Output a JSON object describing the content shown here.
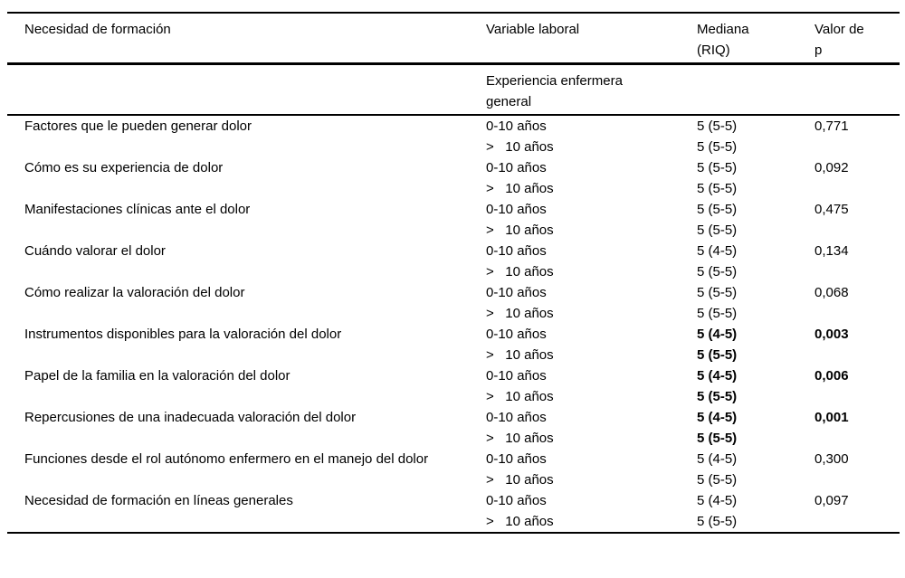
{
  "table": {
    "headers": {
      "need": "Necesidad de formación",
      "variable": "Variable laboral",
      "median": "Mediana\n(RIQ)",
      "p_value": "Valor de\np"
    },
    "subheader": {
      "variable_group": "Experiencia enfermera\ngeneral"
    },
    "groups": [
      {
        "need": "Factores que le pueden generar dolor",
        "rows": [
          {
            "variable": "0-10 años",
            "median": "5 (5-5)",
            "p": "0,771",
            "bold": false
          },
          {
            "variable": ">   10 años",
            "median": "5 (5-5)",
            "p": "",
            "bold": false
          }
        ]
      },
      {
        "need": "Cómo es su experiencia de dolor",
        "rows": [
          {
            "variable": "0-10 años",
            "median": "5 (5-5)",
            "p": "0,092",
            "bold": false
          },
          {
            "variable": ">   10 años",
            "median": "5 (5-5)",
            "p": "",
            "bold": false
          }
        ]
      },
      {
        "need": "Manifestaciones clínicas ante el dolor",
        "rows": [
          {
            "variable": "0-10 años",
            "median": "5 (5-5)",
            "p": "0,475",
            "bold": false
          },
          {
            "variable": ">   10 años",
            "median": "5 (5-5)",
            "p": "",
            "bold": false
          }
        ]
      },
      {
        "need": "Cuándo valorar el dolor",
        "rows": [
          {
            "variable": "0-10 años",
            "median": "5 (4-5)",
            "p": "0,134",
            "bold": false
          },
          {
            "variable": ">   10 años",
            "median": "5 (5-5)",
            "p": "",
            "bold": false
          }
        ]
      },
      {
        "need": "Cómo realizar la valoración del dolor",
        "rows": [
          {
            "variable": "0-10 años",
            "median": "5 (5-5)",
            "p": "0,068",
            "bold": false
          },
          {
            "variable": ">   10 años",
            "median": "5 (5-5)",
            "p": "",
            "bold": false
          }
        ]
      },
      {
        "need": "Instrumentos disponibles para la valoración del dolor",
        "rows": [
          {
            "variable": "0-10 años",
            "median": "5 (4-5)",
            "p": "0,003",
            "bold": true
          },
          {
            "variable": ">   10 años",
            "median": "5 (5-5)",
            "p": "",
            "bold": true
          }
        ]
      },
      {
        "need": "Papel de la familia en la valoración del dolor",
        "rows": [
          {
            "variable": "0-10 años",
            "median": "5 (4-5)",
            "p": "0,006",
            "bold": true
          },
          {
            "variable": ">   10 años",
            "median": "5 (5-5)",
            "p": "",
            "bold": true
          }
        ]
      },
      {
        "need": "Repercusiones de una inadecuada valoración del dolor",
        "rows": [
          {
            "variable": "0-10 años",
            "median": "5 (4-5)",
            "p": "0,001",
            "bold": true
          },
          {
            "variable": ">   10 años",
            "median": "5 (5-5)",
            "p": "",
            "bold": true
          }
        ]
      },
      {
        "need": "Funciones desde el rol autónomo enfermero en el manejo del dolor",
        "rows": [
          {
            "variable": "0-10 años",
            "median": "5 (4-5)",
            "p": "0,300",
            "bold": false
          },
          {
            "variable": ">   10 años",
            "median": "5 (5-5)",
            "p": "",
            "bold": false
          }
        ]
      },
      {
        "need": "Necesidad de formación en líneas generales",
        "rows": [
          {
            "variable": "0-10 años",
            "median": "5 (4-5)",
            "p": "0,097",
            "bold": false
          },
          {
            "variable": ">   10 años",
            "median": "5 (5-5)",
            "p": "",
            "bold": false
          }
        ]
      }
    ]
  }
}
